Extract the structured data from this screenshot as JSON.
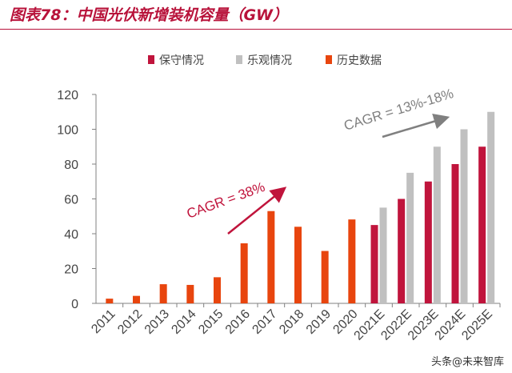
{
  "figure": {
    "title": "图表78：中国光伏新增装机容量（GW）",
    "watermark": "头条@未来智库"
  },
  "chart_data": {
    "type": "bar",
    "title": "",
    "xlabel": "",
    "ylabel": "",
    "ylim": [
      0,
      120
    ],
    "yticks": [
      0,
      20,
      40,
      60,
      80,
      100,
      120
    ],
    "grid": false,
    "legend_position": "top-center",
    "categories": [
      "2011",
      "2012",
      "2013",
      "2014",
      "2015",
      "2016",
      "2017",
      "2018",
      "2019",
      "2020",
      "2021E",
      "2022E",
      "2023E",
      "2024E",
      "2025E"
    ],
    "series": [
      {
        "name": "保守情况",
        "color": "#c0143c",
        "values": [
          null,
          null,
          null,
          null,
          null,
          null,
          null,
          null,
          null,
          null,
          45,
          60,
          70,
          80,
          90
        ]
      },
      {
        "name": "乐观情况",
        "color": "#c0c0c0",
        "values": [
          null,
          null,
          null,
          null,
          null,
          null,
          null,
          null,
          null,
          null,
          55,
          75,
          90,
          100,
          110
        ]
      },
      {
        "name": "历史数据",
        "color": "#e8450e",
        "values": [
          2.7,
          4.3,
          11,
          10.6,
          15,
          34.5,
          53,
          44,
          30.1,
          48.2,
          null,
          null,
          null,
          null,
          null
        ]
      }
    ],
    "annotations": [
      {
        "text": "CAGR = 38%",
        "color": "#c0143c"
      },
      {
        "text": "CAGR = 13%-18%",
        "color": "#808080"
      }
    ]
  }
}
